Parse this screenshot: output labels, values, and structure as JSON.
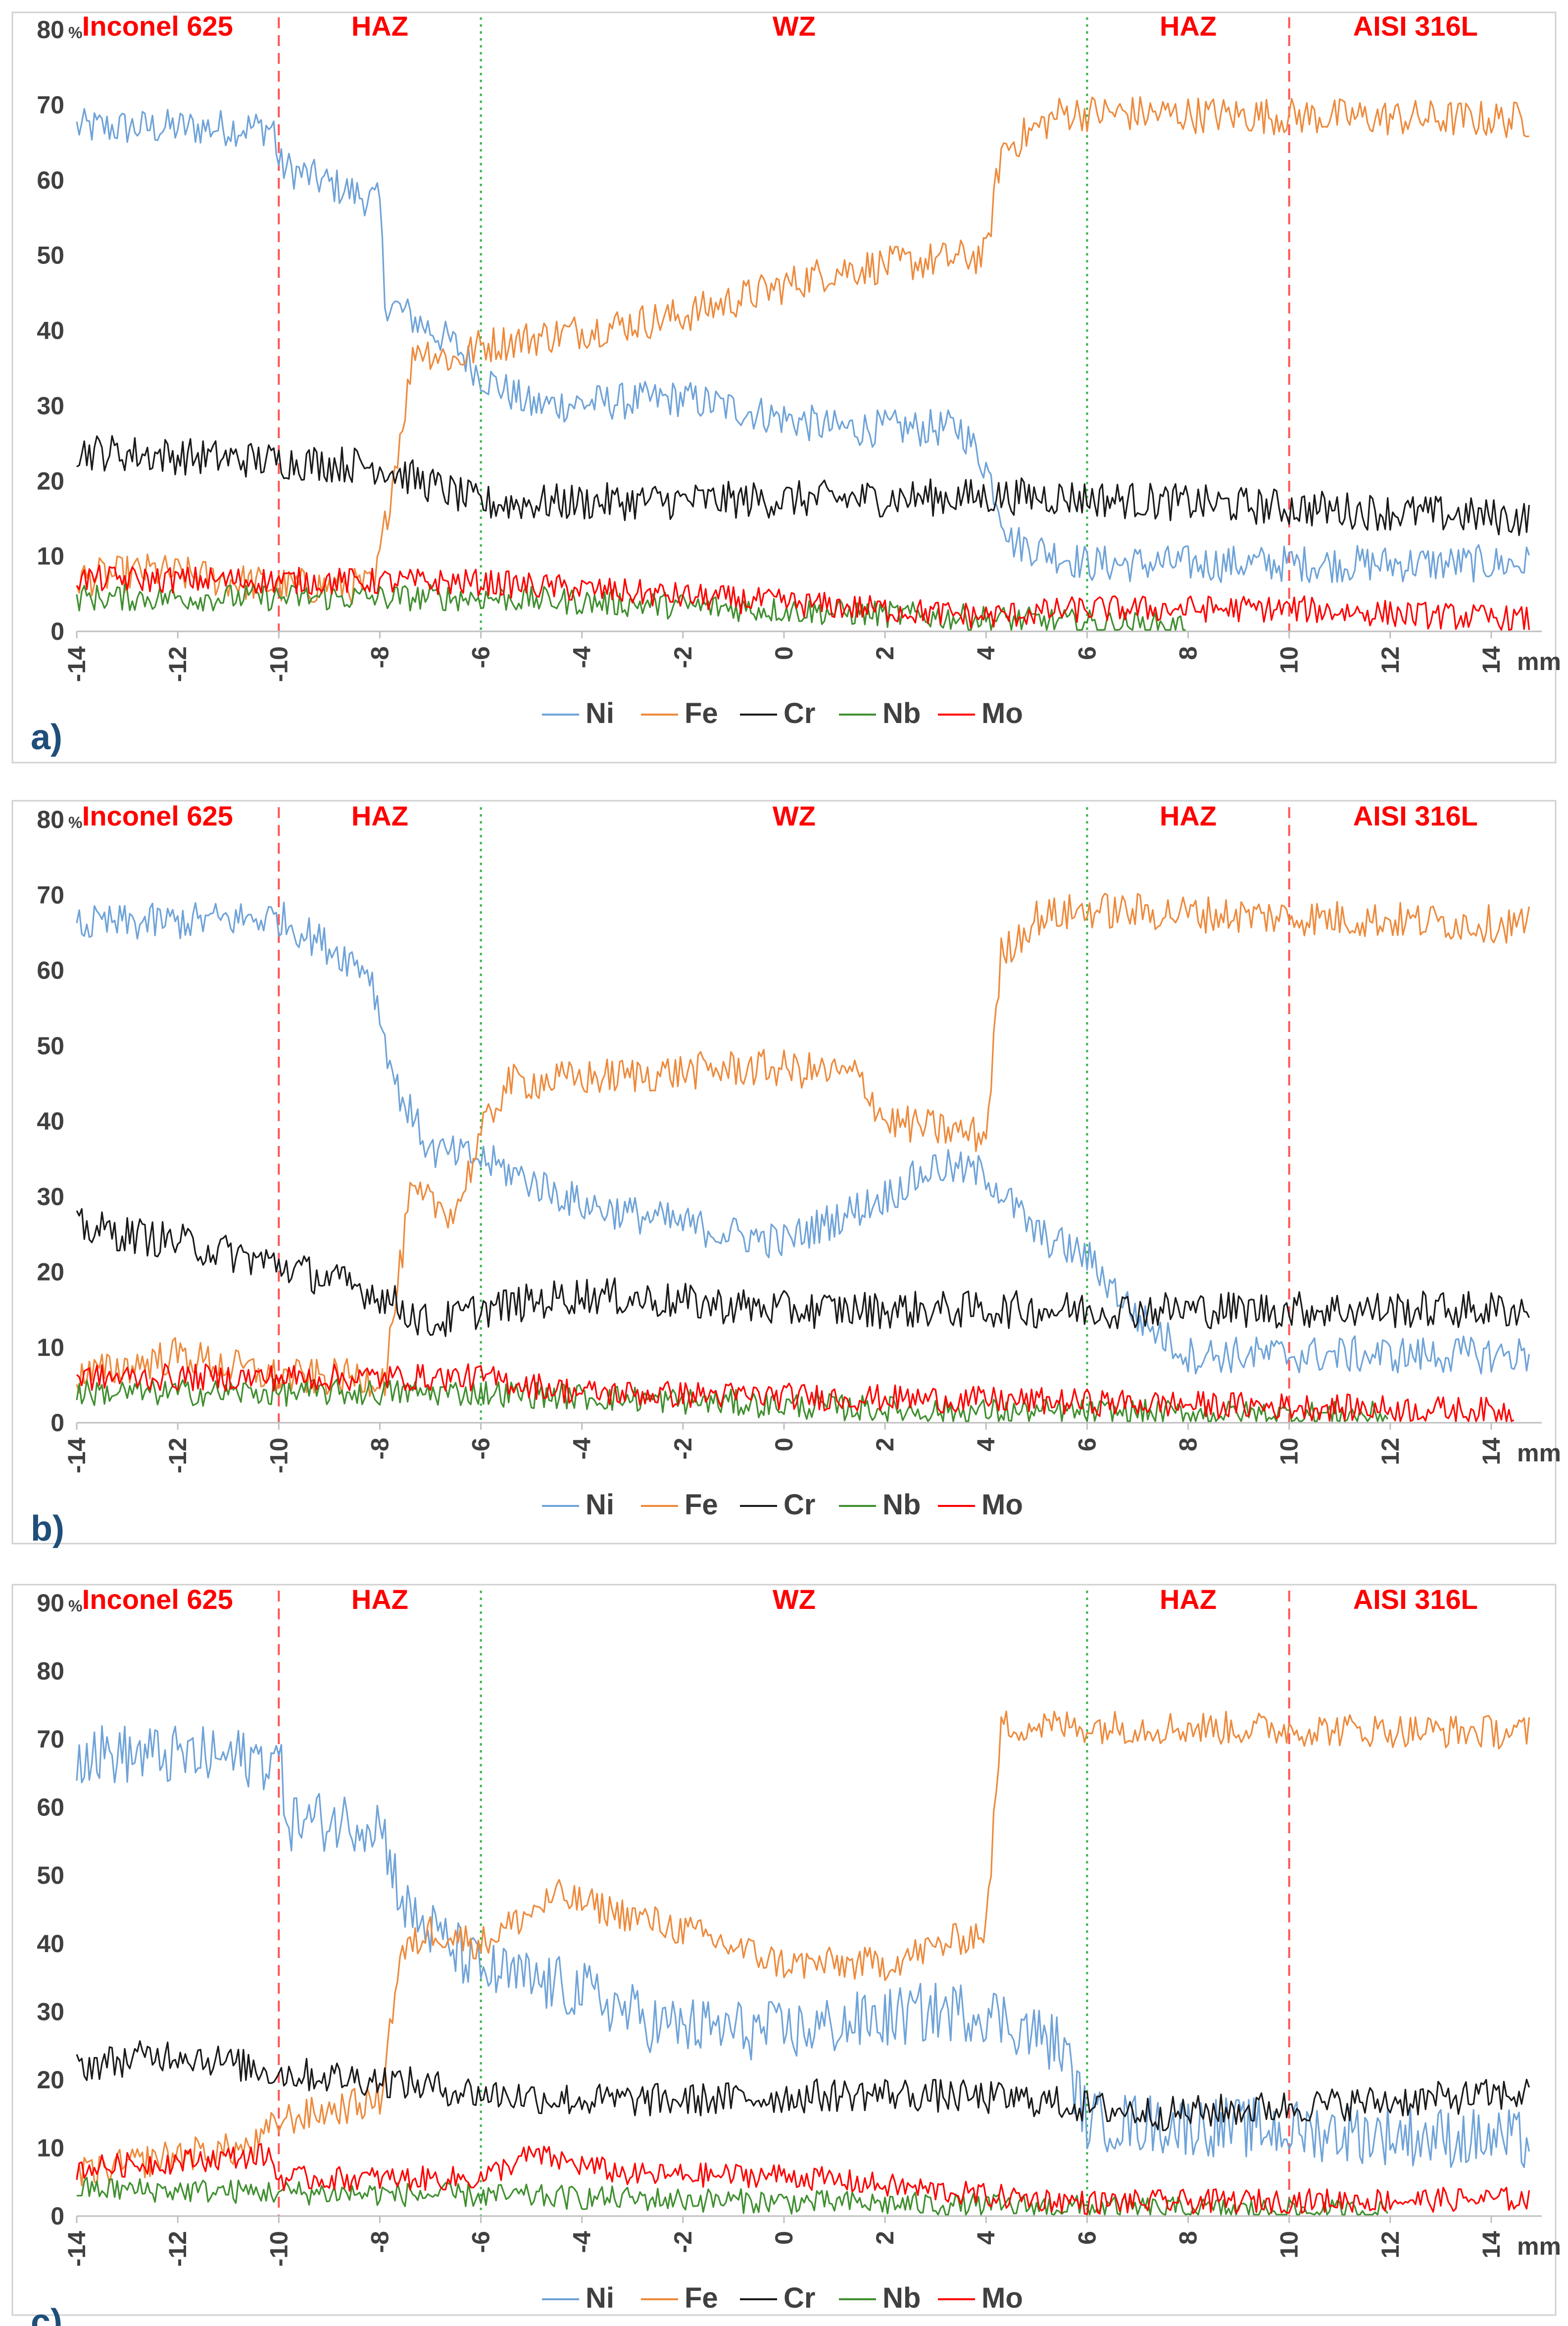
{
  "legend_entries": [
    {
      "name": "Ni",
      "color": "#6fa3d8"
    },
    {
      "name": "Fe",
      "color": "#ed8a3c"
    },
    {
      "name": "Cr",
      "color": "#1a1a1a"
    },
    {
      "name": "Nb",
      "color": "#3f8f2f"
    },
    {
      "name": "Mo",
      "color": "#ff0000"
    }
  ],
  "zone_color": "#ff0000",
  "dashed_line_color": "#ff5555",
  "dotted_line_color": "#39b54a",
  "chart_data": [
    {
      "type": "line",
      "panel_label": "a)",
      "ylabel": "%",
      "xlabel": "mm",
      "ylim": [
        0,
        80
      ],
      "yticks": [
        0,
        10,
        20,
        30,
        40,
        50,
        60,
        70,
        80
      ],
      "xlim": [
        -14,
        15
      ],
      "xticks": [
        -14,
        -12,
        -10,
        -8,
        -6,
        -4,
        -2,
        0,
        2,
        4,
        6,
        8,
        10,
        12,
        14
      ],
      "zones": [
        "Inconel 625",
        "HAZ",
        "WZ",
        "HAZ",
        "AISI 316L"
      ],
      "zone_boundaries": [
        {
          "x": -10,
          "style": "dashed"
        },
        {
          "x": -6,
          "style": "dotted"
        },
        {
          "x": 6,
          "style": "dotted"
        },
        {
          "x": 10,
          "style": "dashed"
        }
      ],
      "series": [
        {
          "name": "Ni",
          "x": [
            -14,
            -10.1,
            -10,
            -8,
            -7.9,
            -6.5,
            -6,
            -5,
            -2,
            1,
            3.5,
            4,
            4.5,
            6,
            14.8
          ],
          "values": [
            67,
            67,
            62,
            57,
            44,
            38,
            34,
            30,
            31,
            27,
            27,
            22,
            12,
            9,
            9
          ],
          "noise": 2.5
        },
        {
          "name": "Fe",
          "x": [
            -14,
            -12.5,
            -10,
            -8.1,
            -7.3,
            -6.5,
            -6,
            -2,
            1,
            4,
            4.3,
            5.5,
            14.8
          ],
          "values": [
            7,
            8,
            6,
            6,
            38,
            36,
            38,
            42,
            48,
            50,
            64,
            69,
            68
          ],
          "noise": 2.5
        },
        {
          "name": "Cr",
          "x": [
            -14,
            -8,
            -6,
            5,
            14.8
          ],
          "values": [
            24,
            22,
            17,
            18,
            15
          ],
          "noise": 2.5
        },
        {
          "name": "Nb",
          "x": [
            -14,
            -6,
            3,
            8
          ],
          "values": [
            4.5,
            4.5,
            2,
            0.5
          ],
          "noise": 1.8
        },
        {
          "name": "Mo",
          "x": [
            -14,
            -6,
            4,
            6,
            10,
            14.8
          ],
          "values": [
            7,
            6.5,
            2,
            3,
            3,
            1.5
          ],
          "noise": 1.8
        }
      ]
    },
    {
      "type": "line",
      "panel_label": "b)",
      "ylabel": "%",
      "xlabel": "mm",
      "ylim": [
        0,
        80
      ],
      "yticks": [
        0,
        10,
        20,
        30,
        40,
        50,
        60,
        70,
        80
      ],
      "xlim": [
        -14,
        15
      ],
      "xticks": [
        -14,
        -12,
        -10,
        -8,
        -6,
        -4,
        -2,
        0,
        2,
        4,
        6,
        8,
        10,
        12,
        14
      ],
      "zones": [
        "Inconel 625",
        "HAZ",
        "WZ",
        "HAZ",
        "AISI 316L"
      ],
      "zone_boundaries": [
        {
          "x": -10,
          "style": "dashed"
        },
        {
          "x": -6,
          "style": "dotted"
        },
        {
          "x": 6,
          "style": "dotted"
        },
        {
          "x": 10,
          "style": "dashed"
        }
      ],
      "series": [
        {
          "name": "Ni",
          "x": [
            -14,
            -10,
            -8.2,
            -7.7,
            -7,
            -6,
            -4,
            -1,
            0,
            2,
            3,
            4,
            5,
            6,
            7,
            8,
            14.8
          ],
          "values": [
            66,
            67,
            60,
            45,
            36,
            35,
            29,
            25,
            24,
            30,
            34,
            33,
            25,
            22,
            14,
            9,
            9
          ],
          "noise": 2.5
        },
        {
          "name": "Fe",
          "x": [
            -14,
            -12,
            -10,
            -7.9,
            -7.4,
            -6.5,
            -6,
            -5.5,
            -1,
            0,
            1.5,
            2,
            4,
            4.3,
            5,
            6,
            14.8
          ],
          "values": [
            6,
            9,
            6,
            6,
            30,
            28,
            38,
            45,
            47,
            47,
            46,
            40,
            38,
            62,
            67,
            68,
            66
          ],
          "noise": 2.5
        },
        {
          "name": "Cr",
          "x": [
            -14,
            -12,
            -10,
            -8,
            -7,
            -6,
            -4,
            0,
            2,
            6,
            14.8
          ],
          "values": [
            26,
            24,
            21,
            17,
            13,
            15,
            17,
            15,
            15,
            15,
            15
          ],
          "noise": 2.5
        },
        {
          "name": "Nb",
          "x": [
            -14,
            -6,
            3,
            12
          ],
          "values": [
            4,
            4,
            1.5,
            1
          ],
          "noise": 1.8
        },
        {
          "name": "Mo",
          "x": [
            -14,
            -6,
            -4,
            4,
            14.5
          ],
          "values": [
            6,
            6,
            4,
            3,
            1.5
          ],
          "noise": 1.8
        }
      ]
    },
    {
      "type": "line",
      "panel_label": "c)",
      "ylabel": "%",
      "xlabel": "mm",
      "ylim": [
        0,
        90
      ],
      "yticks": [
        0,
        10,
        20,
        30,
        40,
        50,
        60,
        70,
        80,
        90
      ],
      "xlim": [
        -14,
        15
      ],
      "xticks": [
        -14,
        -12,
        -10,
        -8,
        -6,
        -4,
        -2,
        0,
        2,
        4,
        6,
        8,
        10,
        12,
        14
      ],
      "zones": [
        "Inconel 625",
        "HAZ",
        "WZ",
        "HAZ",
        "AISI 316L"
      ],
      "zone_boundaries": [
        {
          "x": -10,
          "style": "dashed"
        },
        {
          "x": -6,
          "style": "dotted"
        },
        {
          "x": 6,
          "style": "dotted"
        },
        {
          "x": 10,
          "style": "dashed"
        }
      ],
      "series": [
        {
          "name": "Ni",
          "x": [
            -14,
            -10,
            -9.8,
            -8,
            -7.5,
            -6,
            -4,
            -2.5,
            0,
            3,
            4,
            5.5,
            6,
            14.8
          ],
          "values": [
            68,
            67,
            58,
            58,
            45,
            36,
            33,
            28,
            27,
            30,
            30,
            25,
            14,
            11
          ],
          "noise": 4.5
        },
        {
          "name": "Fe",
          "x": [
            -14,
            -12,
            -10.5,
            -10,
            -8,
            -7.6,
            -7,
            -6,
            -4.5,
            -2,
            0,
            2,
            4,
            4.3,
            5,
            14.8
          ],
          "values": [
            6,
            9,
            10,
            14,
            17,
            38,
            42,
            40,
            47,
            42,
            37,
            37,
            42,
            72,
            72,
            71
          ],
          "noise": 2.5
        },
        {
          "name": "Cr",
          "x": [
            -14,
            -12,
            -10,
            -8,
            -6,
            -4,
            -2,
            2,
            5,
            6,
            7.5,
            14.8
          ],
          "values": [
            22,
            24,
            21,
            20,
            18,
            17,
            17,
            18,
            17,
            16,
            15,
            18
          ],
          "noise": 2.5
        },
        {
          "name": "Nb",
          "x": [
            -14,
            -6,
            4,
            12
          ],
          "values": [
            4,
            3,
            1.5,
            0.5
          ],
          "noise": 1.8
        },
        {
          "name": "Mo",
          "x": [
            -14,
            -10.2,
            -10,
            -6,
            -5,
            -3,
            0,
            4,
            6,
            14.8
          ],
          "values": [
            7,
            9,
            5.5,
            5.5,
            9,
            6,
            6,
            3,
            2,
            2.5
          ],
          "noise": 1.8
        }
      ]
    }
  ]
}
